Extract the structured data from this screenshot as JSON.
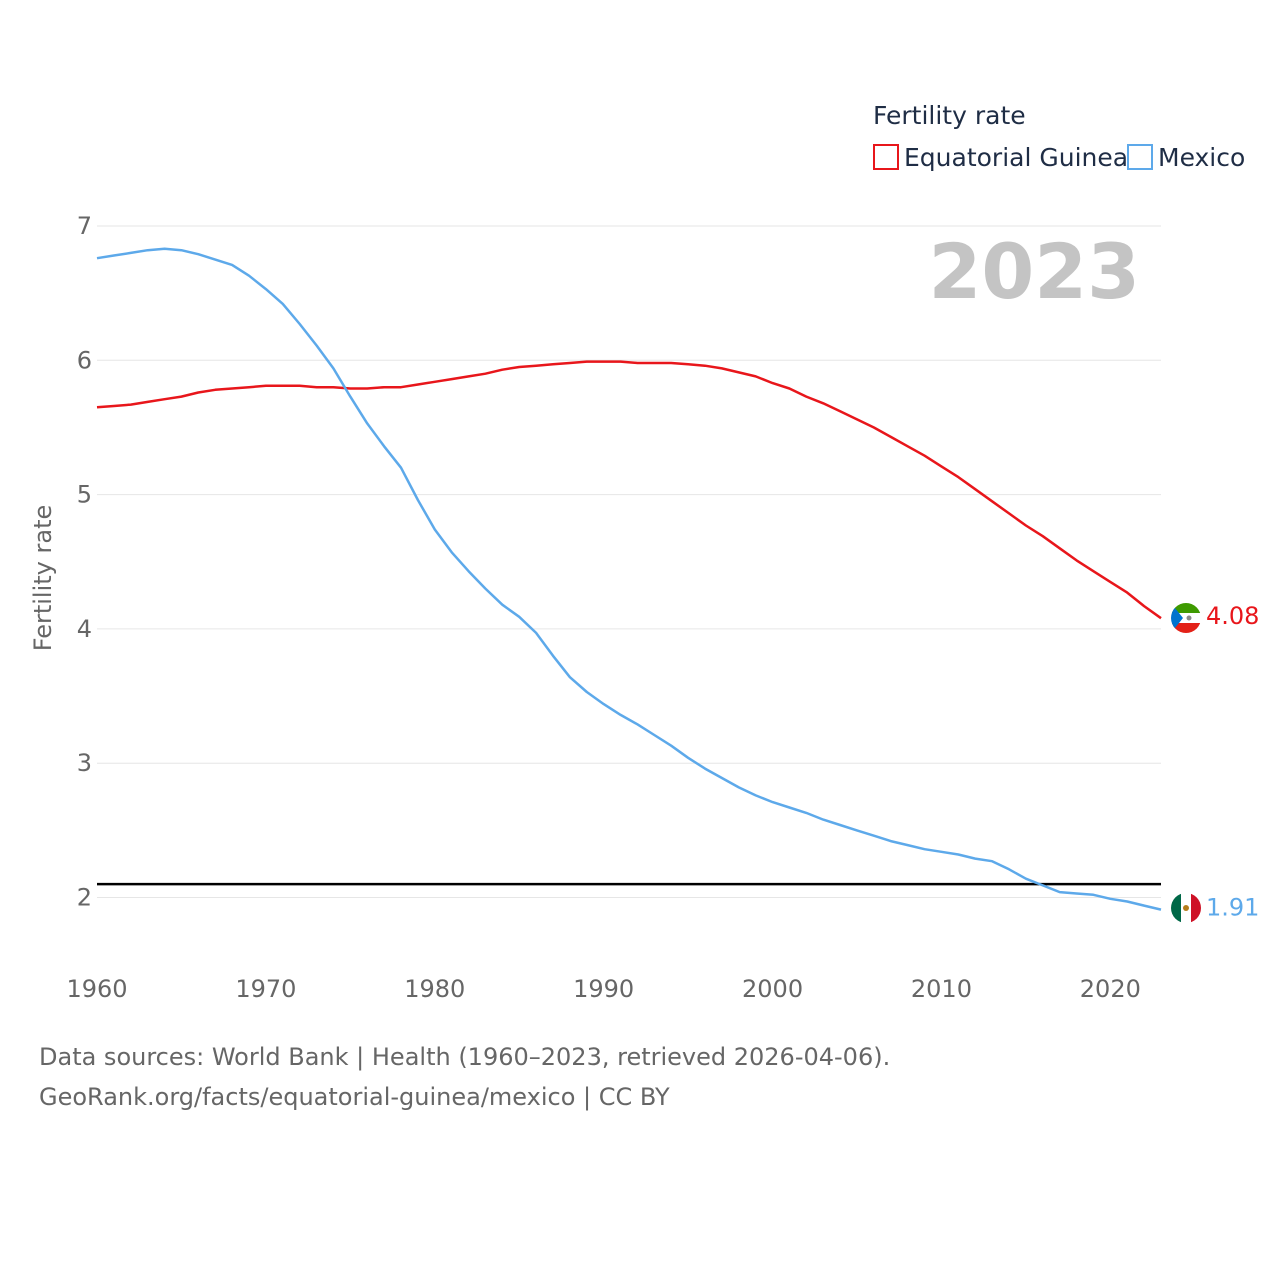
{
  "colors": {
    "equatorial_guinea": "#e8161b",
    "mexico": "#5da9ea",
    "grid": "#e6e6e6",
    "reference_line": "#000000"
  },
  "chart_data": {
    "type": "line",
    "title": "",
    "year_label": "2023",
    "legend_title": "Fertility rate",
    "ylabel": "Fertility rate",
    "xlabel": "",
    "xlim": [
      1960,
      2023
    ],
    "ylim": [
      1.45,
      7.2
    ],
    "x_ticks": [
      "1960",
      "1970",
      "1980",
      "1990",
      "2000",
      "2010",
      "2020"
    ],
    "y_ticks": [
      "2",
      "3",
      "4",
      "5",
      "6",
      "7"
    ],
    "reference_line": 2.1,
    "x": [
      1960,
      1961,
      1962,
      1963,
      1964,
      1965,
      1966,
      1967,
      1968,
      1969,
      1970,
      1971,
      1972,
      1973,
      1974,
      1975,
      1976,
      1977,
      1978,
      1979,
      1980,
      1981,
      1982,
      1983,
      1984,
      1985,
      1986,
      1987,
      1988,
      1989,
      1990,
      1991,
      1992,
      1993,
      1994,
      1995,
      1996,
      1997,
      1998,
      1999,
      2000,
      2001,
      2002,
      2003,
      2004,
      2005,
      2006,
      2007,
      2008,
      2009,
      2010,
      2011,
      2012,
      2013,
      2014,
      2015,
      2016,
      2017,
      2018,
      2019,
      2020,
      2021,
      2022,
      2023
    ],
    "series": [
      {
        "name": "Equatorial Guinea",
        "end_label": "4.08",
        "values": [
          5.65,
          5.66,
          5.67,
          5.69,
          5.71,
          5.73,
          5.76,
          5.78,
          5.79,
          5.8,
          5.81,
          5.81,
          5.81,
          5.8,
          5.8,
          5.79,
          5.79,
          5.8,
          5.8,
          5.82,
          5.84,
          5.86,
          5.88,
          5.9,
          5.93,
          5.95,
          5.96,
          5.97,
          5.98,
          5.99,
          5.99,
          5.99,
          5.98,
          5.98,
          5.98,
          5.97,
          5.96,
          5.94,
          5.91,
          5.88,
          5.83,
          5.79,
          5.73,
          5.68,
          5.62,
          5.56,
          5.5,
          5.43,
          5.36,
          5.29,
          5.21,
          5.13,
          5.04,
          4.95,
          4.86,
          4.77,
          4.69,
          4.6,
          4.51,
          4.43,
          4.35,
          4.27,
          4.17,
          4.08
        ]
      },
      {
        "name": "Mexico",
        "end_label": "1.91",
        "values": [
          6.76,
          6.78,
          6.8,
          6.82,
          6.83,
          6.82,
          6.79,
          6.75,
          6.71,
          6.63,
          6.53,
          6.42,
          6.27,
          6.11,
          5.94,
          5.73,
          5.53,
          5.36,
          5.2,
          4.96,
          4.74,
          4.57,
          4.43,
          4.3,
          4.18,
          4.09,
          3.97,
          3.8,
          3.64,
          3.53,
          3.44,
          3.36,
          3.29,
          3.21,
          3.13,
          3.04,
          2.96,
          2.89,
          2.82,
          2.76,
          2.71,
          2.67,
          2.63,
          2.58,
          2.54,
          2.5,
          2.46,
          2.42,
          2.39,
          2.36,
          2.34,
          2.32,
          2.29,
          2.27,
          2.21,
          2.14,
          2.09,
          2.04,
          2.03,
          2.02,
          1.99,
          1.97,
          1.94,
          1.91
        ]
      }
    ]
  },
  "footer": {
    "line1": "Data sources: World Bank | Health (1960–2023, retrieved 2026-04-06).",
    "line2": "GeoRank.org/facts/equatorial-guinea/mexico | CC BY"
  }
}
